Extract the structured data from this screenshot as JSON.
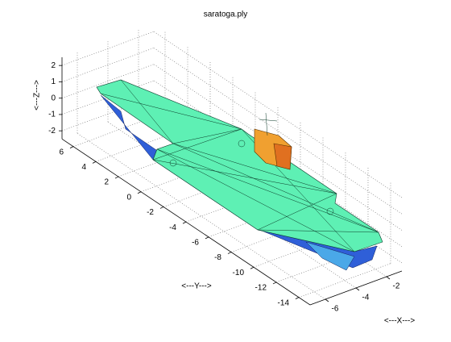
{
  "chart_data": {
    "type": "mesh3d",
    "title": "saratoga.ply",
    "xlabel": "<---X--->",
    "ylabel": "<---Y--->",
    "zlabel": "<---Z--->",
    "xlim": [
      -7,
      -1
    ],
    "ylim": [
      -15,
      7
    ],
    "zlim": [
      -2.5,
      2.5
    ],
    "xticks": [
      -6,
      -4,
      -2
    ],
    "yticks": [
      6,
      4,
      2,
      0,
      -2,
      -4,
      -6,
      -8,
      -10,
      -12,
      -14
    ],
    "zticks": [
      -2,
      -1,
      0,
      1,
      2
    ],
    "grid": true
  }
}
